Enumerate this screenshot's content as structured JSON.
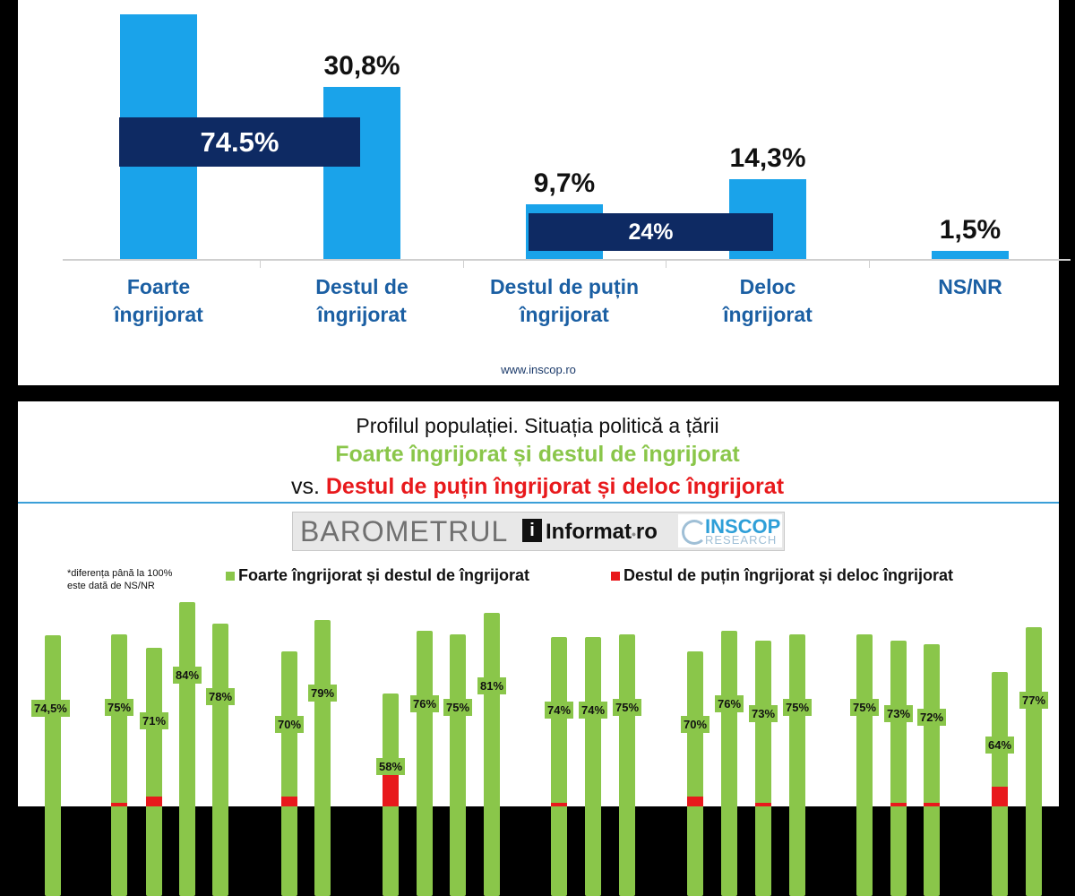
{
  "top_chart": {
    "source": "www.inscop.ro",
    "bands": [
      {
        "label": "74.5%"
      },
      {
        "label": "24%"
      }
    ],
    "categories": [
      {
        "line1": "Foarte",
        "line2": "îngrijorat"
      },
      {
        "line1": "Destul de",
        "line2": "îngrijorat"
      },
      {
        "line1": "Destul de puțin",
        "line2": "îngrijorat"
      },
      {
        "line1": "Deloc",
        "line2": "îngrijorat"
      },
      {
        "line1": "NS/NR",
        "line2": ""
      }
    ],
    "value_labels": [
      "",
      "30,8%",
      "9,7%",
      "14,3%",
      "1,5%"
    ]
  },
  "chart_data": [
    {
      "type": "bar",
      "categories": [
        "Foarte îngrijorat",
        "Destul de îngrijorat",
        "Destul de puțin îngrijorat",
        "Deloc îngrijorat",
        "NS/NR"
      ],
      "values": [
        43.7,
        30.8,
        9.7,
        14.3,
        1.5
      ],
      "value_labels": [
        "",
        "30,8%",
        "9,7%",
        "14,3%",
        "1,5%"
      ],
      "groups": [
        {
          "label": "74.5%",
          "members": [
            "Foarte îngrijorat",
            "Destul de îngrijorat"
          ]
        },
        {
          "label": "24%",
          "members": [
            "Destul de puțin îngrijorat",
            "Deloc îngrijorat"
          ]
        }
      ],
      "color": "#1aa3ea",
      "group_color": "#0e2a63"
    },
    {
      "type": "bar",
      "stacked": true,
      "series": [
        {
          "name": "Foarte îngrijorat și destul de îngrijorat",
          "color": "#8ac64a",
          "values": [
            74.5,
            75,
            71,
            84,
            78,
            70,
            79,
            58,
            76,
            75,
            81,
            74,
            74,
            75,
            70,
            76,
            73,
            75,
            75,
            73,
            72,
            64,
            77
          ]
        },
        {
          "name": "Destul de puțin îngrijorat și deloc îngrijorat",
          "color": "#e8191c",
          "values": [
            0,
            1,
            3,
            0,
            0,
            3,
            0,
            10,
            0,
            0,
            0,
            1,
            0,
            0,
            3,
            0,
            1,
            0,
            0,
            1,
            1,
            6,
            0
          ]
        }
      ],
      "labels": [
        "74,5%",
        "75%",
        "71%",
        "84%",
        "78%",
        "70%",
        "79%",
        "58%",
        "76%",
        "75%",
        "81%",
        "74%",
        "74%",
        "75%",
        "70%",
        "76%",
        "73%",
        "75%",
        "75%",
        "73%",
        "72%",
        "64%",
        "77%"
      ]
    }
  ],
  "bottom": {
    "title_line1": "Profilul populației. Situația politică a țării",
    "title_line2": "Foarte îngrijorat și destul de îngrijorat",
    "title_line3_prefix": "vs.",
    "title_line3": "Destul de puțin îngrijorat și deloc îngrijorat",
    "logo_barometrul": "BAROMETRUL",
    "logo_informat": "Informat",
    "logo_informat_sep": "•",
    "logo_informat_tld": "ro",
    "logo_inscop": "INSCOP",
    "logo_research": "RESEARCH",
    "note_line1": "*diferența până la 100%",
    "note_line2": "este dată de NS/NR",
    "legend_green": "Foarte îngrijorat și destul de îngrijorat",
    "legend_red": "Destul de puțin îngrijorat și deloc îngrijorat",
    "colors": {
      "green": "#8ac64a",
      "red": "#e8191c",
      "blue": "#1aa3ea",
      "navy": "#0e2a63"
    }
  }
}
